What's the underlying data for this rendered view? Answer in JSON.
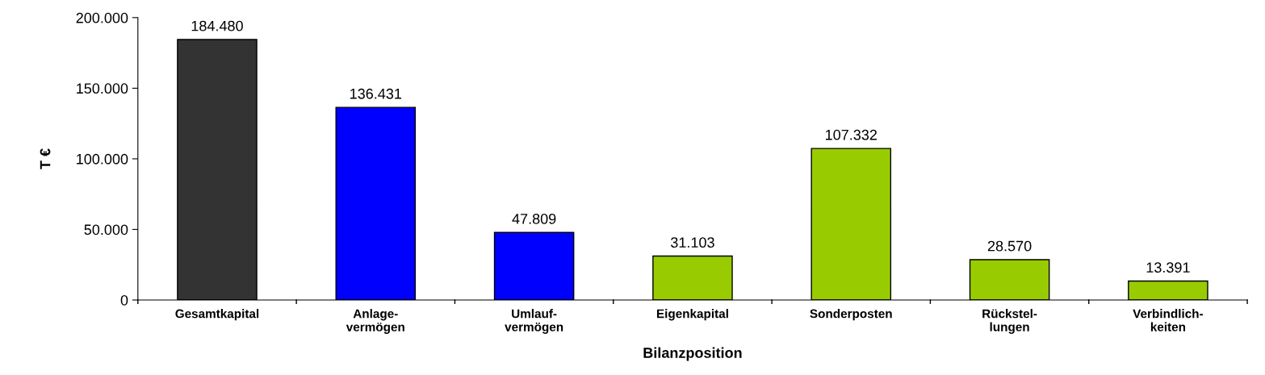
{
  "chart_data": {
    "type": "bar",
    "xlabel": "Bilanzposition",
    "ylabel": "T €",
    "categories": [
      "Gesamtkapital",
      "Anlage-\nvermögen",
      "Umlauf-\nvermögen",
      "Eigenkapital",
      "Sonderposten",
      "Rückstel-\nlungen",
      "Verbindlich-\nkeiten"
    ],
    "values": [
      184480,
      136431,
      47809,
      31103,
      107332,
      28570,
      13391
    ],
    "colors": [
      "#333333",
      "#0000ff",
      "#0000ff",
      "#99cc00",
      "#99cc00",
      "#99cc00",
      "#99cc00"
    ],
    "value_labels": [
      "184.480",
      "136.431",
      "47.809",
      "31.103",
      "107.332",
      "28.570",
      "13.391"
    ],
    "ylim": [
      0,
      200000
    ],
    "yticks": [
      {
        "value": 0,
        "label": "0"
      },
      {
        "value": 50000,
        "label": "50.000"
      },
      {
        "value": 100000,
        "label": "100.000"
      },
      {
        "value": 150000,
        "label": "150.000"
      },
      {
        "value": 200000,
        "label": "200.000"
      }
    ],
    "grid": false,
    "legend": false
  }
}
